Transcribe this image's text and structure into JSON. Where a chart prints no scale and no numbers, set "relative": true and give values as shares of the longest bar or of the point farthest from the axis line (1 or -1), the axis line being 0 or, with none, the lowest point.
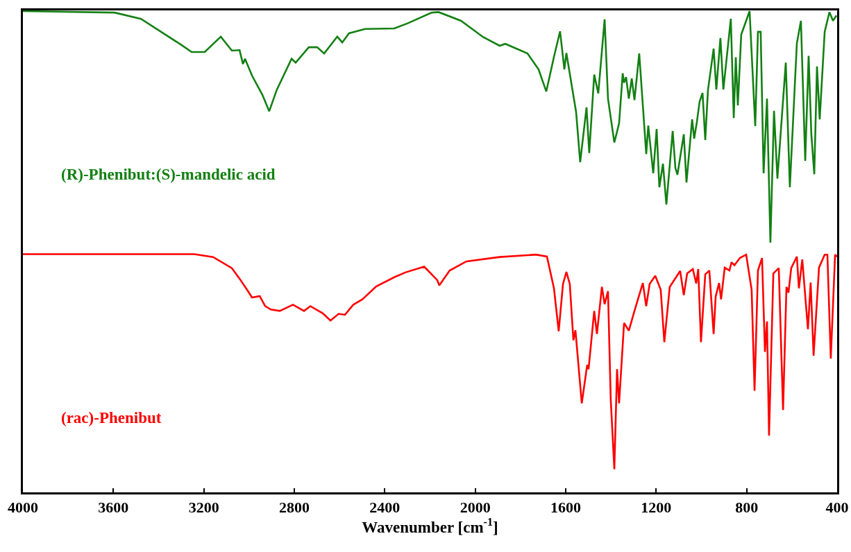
{
  "chart_data": {
    "type": "line",
    "relative": true,
    "xlabel": "Wavenumber [cm$^{-1}$]",
    "xlim": [
      4000,
      400
    ],
    "xticks": [
      4000,
      3600,
      3200,
      2800,
      2400,
      2000,
      1600,
      1200,
      800,
      400
    ],
    "grid": false,
    "legend": false,
    "marker": "none",
    "line_style": "solid",
    "series": [
      {
        "name": "(R)-Phenibut:(S)-mandelic acid",
        "color": "#138013",
        "x": [
          4000,
          3595,
          3478,
          3300,
          3254,
          3196,
          3125,
          3076,
          3042,
          3027,
          3018,
          2987,
          2941,
          2911,
          2877,
          2812,
          2794,
          2736,
          2699,
          2668,
          2610,
          2588,
          2558,
          2487,
          2358,
          2297,
          2192,
          2162,
          2063,
          1965,
          1892,
          1867,
          1769,
          1720,
          1686,
          1652,
          1625,
          1606,
          1597,
          1554,
          1536,
          1508,
          1496,
          1474,
          1456,
          1428,
          1413,
          1385,
          1364,
          1348,
          1342,
          1333,
          1321,
          1308,
          1296,
          1275,
          1244,
          1235,
          1213,
          1198,
          1186,
          1170,
          1155,
          1127,
          1115,
          1106,
          1078,
          1066,
          1041,
          1032,
          1020,
          1008,
          995,
          983,
          971,
          946,
          934,
          916,
          903,
          870,
          857,
          848,
          839,
          824,
          787,
          762,
          750,
          738,
          725,
          710,
          695,
          679,
          664,
          627,
          609,
          578,
          560,
          541,
          526,
          514,
          501,
          489,
          477,
          455,
          434,
          418,
          403
        ],
        "values": [
          1.0,
          0.997,
          0.984,
          0.93,
          0.915,
          0.915,
          0.947,
          0.918,
          0.919,
          0.89,
          0.901,
          0.866,
          0.826,
          0.792,
          0.837,
          0.901,
          0.893,
          0.925,
          0.925,
          0.912,
          0.947,
          0.935,
          0.954,
          0.963,
          0.964,
          0.975,
          0.997,
          0.998,
          0.98,
          0.946,
          0.928,
          0.932,
          0.912,
          0.879,
          0.833,
          0.905,
          0.958,
          0.879,
          0.913,
          0.79,
          0.686,
          0.8,
          0.705,
          0.868,
          0.829,
          0.983,
          0.818,
          0.727,
          0.767,
          0.871,
          0.851,
          0.863,
          0.818,
          0.86,
          0.815,
          0.912,
          0.703,
          0.762,
          0.663,
          0.755,
          0.634,
          0.683,
          0.598,
          0.751,
          0.674,
          0.66,
          0.744,
          0.644,
          0.775,
          0.735,
          0.77,
          0.812,
          0.83,
          0.732,
          0.836,
          0.922,
          0.837,
          0.944,
          0.837,
          0.984,
          0.778,
          0.904,
          0.804,
          0.951,
          1.0,
          0.761,
          0.957,
          0.957,
          0.663,
          0.818,
          0.519,
          0.793,
          0.652,
          0.893,
          0.634,
          0.933,
          0.98,
          0.689,
          0.907,
          0.744,
          0.661,
          0.885,
          0.775,
          0.957,
          0.998,
          0.98,
          0.991
        ]
      },
      {
        "name": "(rac)-Phenibut",
        "color": "#ff0000",
        "x": [
          4000,
          3242,
          3159,
          3076,
          3042,
          3006,
          2987,
          2953,
          2929,
          2904,
          2864,
          2806,
          2757,
          2729,
          2674,
          2640,
          2604,
          2576,
          2539,
          2499,
          2438,
          2358,
          2309,
          2226,
          2168,
          2159,
          2113,
          2039,
          1892,
          1732,
          1683,
          1652,
          1631,
          1612,
          1597,
          1582,
          1566,
          1557,
          1529,
          1505,
          1499,
          1474,
          1462,
          1440,
          1428,
          1413,
          1401,
          1385,
          1373,
          1364,
          1342,
          1321,
          1296,
          1259,
          1244,
          1229,
          1204,
          1180,
          1164,
          1140,
          1094,
          1078,
          1063,
          1038,
          1023,
          1014,
          1002,
          983,
          965,
          946,
          937,
          922,
          913,
          897,
          876,
          867,
          854,
          830,
          802,
          778,
          765,
          750,
          732,
          719,
          710,
          701,
          682,
          658,
          639,
          624,
          615,
          603,
          578,
          569,
          554,
          529,
          517,
          504,
          480,
          455,
          443,
          428,
          409,
          400
        ],
        "values": [
          0.495,
          0.495,
          0.489,
          0.466,
          0.444,
          0.419,
          0.405,
          0.408,
          0.387,
          0.38,
          0.377,
          0.39,
          0.377,
          0.387,
          0.372,
          0.357,
          0.371,
          0.369,
          0.39,
          0.401,
          0.428,
          0.447,
          0.457,
          0.469,
          0.441,
          0.43,
          0.461,
          0.48,
          0.489,
          0.494,
          0.49,
          0.424,
          0.335,
          0.433,
          0.458,
          0.433,
          0.316,
          0.337,
          0.185,
          0.265,
          0.256,
          0.377,
          0.329,
          0.427,
          0.391,
          0.418,
          0.194,
          0.048,
          0.256,
          0.185,
          0.352,
          0.336,
          0.377,
          0.435,
          0.387,
          0.433,
          0.45,
          0.421,
          0.312,
          0.427,
          0.46,
          0.41,
          0.455,
          0.464,
          0.434,
          0.464,
          0.312,
          0.453,
          0.461,
          0.329,
          0.407,
          0.435,
          0.401,
          0.467,
          0.461,
          0.478,
          0.472,
          0.487,
          0.494,
          0.421,
          0.211,
          0.461,
          0.487,
          0.292,
          0.355,
          0.118,
          0.455,
          0.466,
          0.171,
          0.427,
          0.415,
          0.466,
          0.49,
          0.424,
          0.484,
          0.339,
          0.436,
          0.284,
          0.467,
          0.494,
          0.494,
          0.278,
          0.494,
          0.49
        ]
      }
    ]
  }
}
